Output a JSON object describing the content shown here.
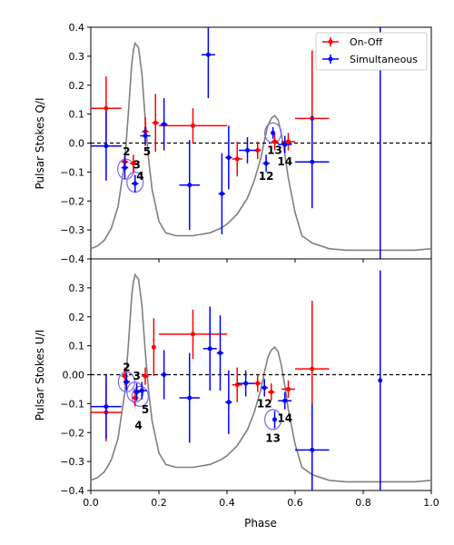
{
  "chart_data": [
    {
      "type": "scatter",
      "title": "",
      "xlabel": "",
      "ylabel": "Pulsar Stokes Q/I",
      "xlim": [
        0.0,
        1.0
      ],
      "ylim": [
        -0.4,
        0.4
      ],
      "yticks": [
        -0.4,
        -0.3,
        -0.2,
        -0.1,
        0.0,
        0.1,
        0.2,
        0.3,
        0.4
      ],
      "ytick_labels": [
        "−0.4",
        "−0.3",
        "−0.2",
        "−0.1",
        "0.0",
        "0.1",
        "0.2",
        "0.3",
        "0.4"
      ],
      "show_xtick_labels": false,
      "legend_position": "top-right",
      "reference_line_y": 0.0,
      "profile": {
        "color": "#808080",
        "x": [
          0.0,
          0.02,
          0.04,
          0.06,
          0.08,
          0.1,
          0.11,
          0.12,
          0.125,
          0.13,
          0.14,
          0.15,
          0.16,
          0.17,
          0.18,
          0.2,
          0.22,
          0.25,
          0.3,
          0.35,
          0.38,
          0.4,
          0.43,
          0.46,
          0.48,
          0.5,
          0.51,
          0.52,
          0.53,
          0.54,
          0.55,
          0.56,
          0.57,
          0.58,
          0.6,
          0.62,
          0.65,
          0.7,
          0.75,
          0.8,
          0.85,
          0.9,
          0.95,
          1.0
        ],
        "y": [
          -0.365,
          -0.355,
          -0.335,
          -0.295,
          -0.22,
          -0.06,
          0.1,
          0.27,
          0.32,
          0.345,
          0.33,
          0.24,
          0.08,
          -0.06,
          -0.16,
          -0.27,
          -0.31,
          -0.32,
          -0.32,
          -0.31,
          -0.295,
          -0.28,
          -0.245,
          -0.19,
          -0.13,
          -0.05,
          0.01,
          0.06,
          0.085,
          0.095,
          0.08,
          0.03,
          -0.04,
          -0.12,
          -0.24,
          -0.32,
          -0.345,
          -0.365,
          -0.37,
          -0.37,
          -0.37,
          -0.37,
          -0.37,
          -0.365
        ]
      },
      "series": [
        {
          "name": "On-Off",
          "color": "#ff0000",
          "points": [
            {
              "x": 0.045,
              "y": 0.12,
              "xerr": 0.045,
              "yerr": 0.11
            },
            {
              "x": 0.1,
              "y": -0.065,
              "xerr": 0.01,
              "yerr": 0.03
            },
            {
              "x": 0.125,
              "y": -0.07,
              "xerr": 0.01,
              "yerr": 0.03
            },
            {
              "x": 0.16,
              "y": 0.04,
              "xerr": 0.01,
              "yerr": 0.05
            },
            {
              "x": 0.19,
              "y": 0.07,
              "xerr": 0.01,
              "yerr": 0.1
            },
            {
              "x": 0.3,
              "y": 0.06,
              "xerr": 0.1,
              "yerr": 0.06
            },
            {
              "x": 0.43,
              "y": -0.055,
              "xerr": 0.015,
              "yerr": 0.06
            },
            {
              "x": 0.49,
              "y": -0.025,
              "xerr": 0.01,
              "yerr": 0.03
            },
            {
              "x": 0.54,
              "y": 0.005,
              "xerr": 0.01,
              "yerr": 0.03
            },
            {
              "x": 0.58,
              "y": 0.005,
              "xerr": 0.02,
              "yerr": 0.03
            },
            {
              "x": 0.65,
              "y": 0.085,
              "xerr": 0.05,
              "yerr": 0.235
            }
          ]
        },
        {
          "name": "Simultaneous",
          "color": "#0000ff",
          "points": [
            {
              "x": 0.045,
              "y": -0.01,
              "xerr": 0.045,
              "yerr": 0.12
            },
            {
              "x": 0.1,
              "y": -0.085,
              "xerr": 0.01,
              "yerr": 0.04
            },
            {
              "x": 0.13,
              "y": -0.14,
              "xerr": 0.01,
              "yerr": 0.03
            },
            {
              "x": 0.16,
              "y": 0.025,
              "xerr": 0.015,
              "yerr": 0.03
            },
            {
              "x": 0.215,
              "y": 0.065,
              "xerr": 0.01,
              "yerr": 0.09
            },
            {
              "x": 0.29,
              "y": -0.145,
              "xerr": 0.03,
              "yerr": 0.155
            },
            {
              "x": 0.345,
              "y": 0.305,
              "xerr": 0.02,
              "yerr": 0.15
            },
            {
              "x": 0.385,
              "y": -0.175,
              "xerr": 0.01,
              "yerr": 0.14
            },
            {
              "x": 0.405,
              "y": -0.05,
              "xerr": 0.01,
              "yerr": 0.11
            },
            {
              "x": 0.46,
              "y": -0.025,
              "xerr": 0.025,
              "yerr": 0.045
            },
            {
              "x": 0.515,
              "y": -0.07,
              "xerr": 0.01,
              "yerr": 0.03
            },
            {
              "x": 0.535,
              "y": 0.035,
              "xerr": 0.005,
              "yerr": 0.02
            },
            {
              "x": 0.57,
              "y": -0.005,
              "xerr": 0.02,
              "yerr": 0.03
            },
            {
              "x": 0.65,
              "y": -0.065,
              "xerr": 0.05,
              "yerr": 0.16
            },
            {
              "x": 0.85,
              "y": 0.3,
              "xerr": 0.0,
              "yerr": 0.7
            }
          ]
        }
      ],
      "annotations": [
        {
          "text": "2",
          "x": 0.105,
          "y": -0.03,
          "circle": {
            "x": 0.103,
            "y": -0.09
          }
        },
        {
          "text": "3",
          "x": 0.135,
          "y": -0.075
        },
        {
          "text": "4",
          "x": 0.145,
          "y": -0.115,
          "circle": {
            "x": 0.13,
            "y": -0.135
          }
        },
        {
          "text": "5",
          "x": 0.165,
          "y": -0.03
        },
        {
          "text": "12",
          "x": 0.515,
          "y": -0.115
        },
        {
          "text": "13",
          "x": 0.54,
          "y": -0.025,
          "circle": {
            "x": 0.535,
            "y": 0.035
          }
        },
        {
          "text": "14",
          "x": 0.57,
          "y": -0.065
        }
      ]
    },
    {
      "type": "scatter",
      "title": "",
      "xlabel": "Phase",
      "ylabel": "Pulsar Stokes U/I",
      "xlim": [
        0.0,
        1.0
      ],
      "ylim": [
        -0.4,
        0.4
      ],
      "xticks": [
        0.0,
        0.2,
        0.4,
        0.6,
        0.8,
        1.0
      ],
      "xtick_labels": [
        "0.0",
        "0.2",
        "0.4",
        "0.6",
        "0.8",
        "1.0"
      ],
      "yticks": [
        -0.4,
        -0.3,
        -0.2,
        -0.1,
        0.0,
        0.1,
        0.2,
        0.3
      ],
      "ytick_labels": [
        "−0.4",
        "−0.3",
        "−0.2",
        "−0.1",
        "0.00",
        "0.1",
        "0.2",
        "0.3"
      ],
      "show_xtick_labels": true,
      "reference_line_y": 0.0,
      "profile": {
        "color": "#808080",
        "x": [
          0.0,
          0.02,
          0.04,
          0.06,
          0.08,
          0.1,
          0.11,
          0.12,
          0.125,
          0.13,
          0.14,
          0.15,
          0.16,
          0.17,
          0.18,
          0.2,
          0.22,
          0.25,
          0.3,
          0.35,
          0.38,
          0.4,
          0.43,
          0.46,
          0.48,
          0.5,
          0.51,
          0.52,
          0.53,
          0.54,
          0.55,
          0.56,
          0.57,
          0.58,
          0.6,
          0.62,
          0.65,
          0.7,
          0.75,
          0.8,
          0.85,
          0.9,
          0.95,
          1.0
        ],
        "y": [
          -0.365,
          -0.355,
          -0.335,
          -0.295,
          -0.22,
          -0.06,
          0.1,
          0.27,
          0.32,
          0.345,
          0.33,
          0.24,
          0.08,
          -0.06,
          -0.16,
          -0.27,
          -0.31,
          -0.32,
          -0.32,
          -0.31,
          -0.295,
          -0.28,
          -0.245,
          -0.19,
          -0.13,
          -0.05,
          0.01,
          0.06,
          0.085,
          0.095,
          0.08,
          0.03,
          -0.04,
          -0.12,
          -0.24,
          -0.32,
          -0.345,
          -0.365,
          -0.37,
          -0.37,
          -0.37,
          -0.37,
          -0.37,
          -0.365
        ]
      },
      "series": [
        {
          "name": "On-Off",
          "color": "#ff0000",
          "points": [
            {
              "x": 0.045,
              "y": -0.13,
              "xerr": 0.045,
              "yerr": 0.1
            },
            {
              "x": 0.1,
              "y": -0.005,
              "xerr": 0.01,
              "yerr": 0.03
            },
            {
              "x": 0.13,
              "y": -0.08,
              "xerr": 0.01,
              "yerr": 0.03
            },
            {
              "x": 0.16,
              "y": -0.005,
              "xerr": 0.01,
              "yerr": 0.03
            },
            {
              "x": 0.185,
              "y": 0.095,
              "xerr": 0.005,
              "yerr": 0.1
            },
            {
              "x": 0.3,
              "y": 0.14,
              "xerr": 0.1,
              "yerr": 0.085
            },
            {
              "x": 0.43,
              "y": -0.035,
              "xerr": 0.015,
              "yerr": 0.06
            },
            {
              "x": 0.49,
              "y": -0.03,
              "xerr": 0.01,
              "yerr": 0.03
            },
            {
              "x": 0.53,
              "y": -0.06,
              "xerr": 0.01,
              "yerr": 0.03
            },
            {
              "x": 0.58,
              "y": -0.05,
              "xerr": 0.02,
              "yerr": 0.03
            },
            {
              "x": 0.65,
              "y": 0.02,
              "xerr": 0.05,
              "yerr": 0.235
            }
          ]
        },
        {
          "name": "Simultaneous",
          "color": "#0000ff",
          "points": [
            {
              "x": 0.045,
              "y": -0.11,
              "xerr": 0.045,
              "yerr": 0.11
            },
            {
              "x": 0.105,
              "y": -0.025,
              "xerr": 0.01,
              "yerr": 0.03
            },
            {
              "x": 0.135,
              "y": -0.06,
              "xerr": 0.01,
              "yerr": 0.03
            },
            {
              "x": 0.15,
              "y": -0.055,
              "xerr": 0.015,
              "yerr": 0.03
            },
            {
              "x": 0.215,
              "y": 0.0,
              "xerr": 0.01,
              "yerr": 0.085
            },
            {
              "x": 0.29,
              "y": -0.08,
              "xerr": 0.03,
              "yerr": 0.155
            },
            {
              "x": 0.35,
              "y": 0.09,
              "xerr": 0.02,
              "yerr": 0.145
            },
            {
              "x": 0.38,
              "y": 0.075,
              "xerr": 0.01,
              "yerr": 0.13
            },
            {
              "x": 0.405,
              "y": -0.095,
              "xerr": 0.01,
              "yerr": 0.11
            },
            {
              "x": 0.455,
              "y": -0.03,
              "xerr": 0.025,
              "yerr": 0.045
            },
            {
              "x": 0.51,
              "y": -0.045,
              "xerr": 0.01,
              "yerr": 0.03
            },
            {
              "x": 0.54,
              "y": -0.155,
              "xerr": 0.005,
              "yerr": 0.03
            },
            {
              "x": 0.57,
              "y": -0.09,
              "xerr": 0.02,
              "yerr": 0.03
            },
            {
              "x": 0.65,
              "y": -0.26,
              "xerr": 0.05,
              "yerr": 0.16
            },
            {
              "x": 0.85,
              "y": -0.02,
              "xerr": 0.0,
              "yerr": 0.38
            }
          ]
        }
      ],
      "annotations": [
        {
          "text": "2",
          "x": 0.105,
          "y": 0.025,
          "circle": {
            "x": 0.105,
            "y": -0.025
          }
        },
        {
          "text": "3",
          "x": 0.135,
          "y": -0.005,
          "circle": {
            "x": 0.13,
            "y": -0.06
          }
        },
        {
          "text": "4",
          "x": 0.14,
          "y": -0.175,
          "circle": {
            "x": 0.145,
            "y": -0.075
          }
        },
        {
          "text": "5",
          "x": 0.16,
          "y": -0.12
        },
        {
          "text": "12",
          "x": 0.51,
          "y": -0.1
        },
        {
          "text": "13",
          "x": 0.535,
          "y": -0.22,
          "circle": {
            "x": 0.535,
            "y": -0.155
          }
        },
        {
          "text": "14",
          "x": 0.57,
          "y": -0.15
        }
      ]
    }
  ]
}
